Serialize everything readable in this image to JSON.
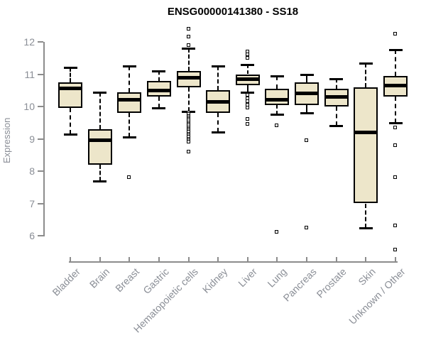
{
  "chart_data": {
    "type": "boxplot",
    "title": "ENSG00000141380 - SS18",
    "ylabel": "Expression",
    "xlabel": "",
    "ylim": [
      6,
      12
    ],
    "yticks": [
      6,
      7,
      8,
      9,
      10,
      11,
      12
    ],
    "grid": false,
    "legend": "none",
    "box_fill_color": "#ede6ca",
    "stroke_color": "#000000",
    "axis_color": "#8c8c8c",
    "label_color": "#8a8e96",
    "categories": [
      "Bladder",
      "Brain",
      "Breast",
      "Gastric",
      "Hematopoietic cells",
      "Kidney",
      "Liver",
      "Lung",
      "Pancreas",
      "Prostate",
      "Skin",
      "Unknown / Other"
    ],
    "series": [
      {
        "category": "Bladder",
        "whisker_low": 9.15,
        "q1": 9.95,
        "median": 10.55,
        "q3": 10.75,
        "whisker_high": 11.2,
        "outliers": []
      },
      {
        "category": "Brain",
        "whisker_low": 7.7,
        "q1": 8.2,
        "median": 8.95,
        "q3": 9.3,
        "whisker_high": 10.45,
        "outliers": []
      },
      {
        "category": "Breast",
        "whisker_low": 9.05,
        "q1": 9.8,
        "median": 10.2,
        "q3": 10.45,
        "whisker_high": 11.25,
        "outliers": [
          7.8
        ]
      },
      {
        "category": "Gastric",
        "whisker_low": 9.95,
        "q1": 10.3,
        "median": 10.5,
        "q3": 10.8,
        "whisker_high": 11.1,
        "outliers": []
      },
      {
        "category": "Hematopoietic cells",
        "whisker_low": 9.85,
        "q1": 10.6,
        "median": 10.9,
        "q3": 11.1,
        "whisker_high": 11.8,
        "outliers": [
          12.4,
          12.15,
          11.9,
          9.8,
          9.75,
          9.7,
          9.65,
          9.6,
          9.55,
          9.5,
          9.45,
          9.4,
          9.35,
          9.3,
          9.25,
          9.2,
          9.15,
          9.1,
          9.05,
          9.0,
          8.95,
          8.9,
          8.6
        ]
      },
      {
        "category": "Kidney",
        "whisker_low": 9.2,
        "q1": 9.8,
        "median": 10.15,
        "q3": 10.5,
        "whisker_high": 11.25,
        "outliers": []
      },
      {
        "category": "Liver",
        "whisker_low": 10.45,
        "q1": 10.65,
        "median": 10.85,
        "q3": 11.0,
        "whisker_high": 11.3,
        "outliers": [
          11.7,
          11.6,
          11.5,
          10.35,
          10.25,
          10.15,
          10.05,
          9.95,
          9.6,
          9.45
        ]
      },
      {
        "category": "Lung",
        "whisker_low": 9.75,
        "q1": 10.05,
        "median": 10.2,
        "q3": 10.55,
        "whisker_high": 10.95,
        "outliers": [
          9.4,
          6.1
        ]
      },
      {
        "category": "Pancreas",
        "whisker_low": 9.8,
        "q1": 10.05,
        "median": 10.4,
        "q3": 10.75,
        "whisker_high": 11.0,
        "outliers": [
          8.95,
          6.25
        ]
      },
      {
        "category": "Prostate",
        "whisker_low": 9.4,
        "q1": 10.0,
        "median": 10.3,
        "q3": 10.55,
        "whisker_high": 10.85,
        "outliers": []
      },
      {
        "category": "Skin",
        "whisker_low": 6.25,
        "q1": 7.0,
        "median": 9.2,
        "q3": 10.6,
        "whisker_high": 11.35,
        "outliers": []
      },
      {
        "category": "Unknown / Other",
        "whisker_low": 9.5,
        "q1": 10.3,
        "median": 10.65,
        "q3": 10.95,
        "whisker_high": 11.75,
        "outliers": [
          12.25,
          9.35,
          8.8,
          7.8,
          6.3,
          5.55
        ]
      }
    ]
  }
}
